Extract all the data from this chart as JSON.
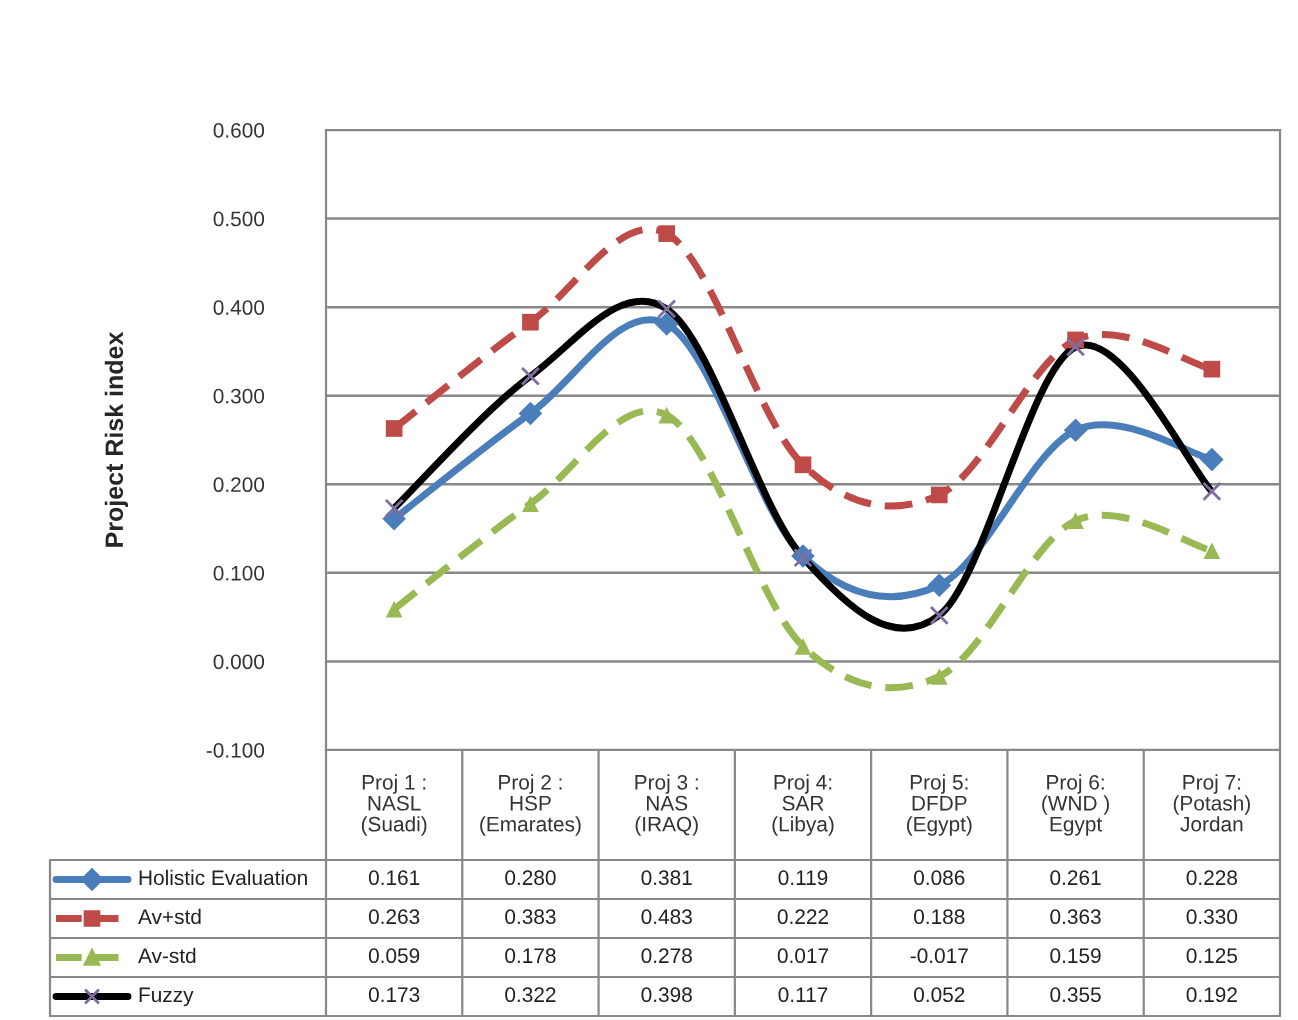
{
  "chart_data": {
    "type": "line",
    "ylabel": "Project Risk index",
    "categories": [
      "Proj 1 :\nNASL\n(Suadi)",
      "Proj 2 :\nHSP\n(Emarates)",
      "Proj 3 :\nNAS\n(IRAQ)",
      "Proj 4:\nSAR\n(Libya)",
      "Proj 5:\nDFDP\n(Egypt)",
      "Proj 6:\n(WND )\nEgypt",
      "Proj 7:\n(Potash)\nJordan"
    ],
    "series": [
      {
        "name": "Holistic Evaluation",
        "color": "#4a7ebb",
        "marker": "diamond",
        "line_style": "solid",
        "values": [
          0.161,
          0.28,
          0.381,
          0.119,
          0.086,
          0.261,
          0.228
        ],
        "value_labels": [
          "0.161",
          "0.280",
          "0.381",
          "0.119",
          "0.086",
          "0.261",
          "0.228"
        ]
      },
      {
        "name": "Av+std",
        "color": "#be4b48",
        "marker": "square",
        "line_style": "dashed",
        "values": [
          0.263,
          0.383,
          0.483,
          0.222,
          0.188,
          0.363,
          0.33
        ],
        "value_labels": [
          "0.263",
          "0.383",
          "0.483",
          "0.222",
          "0.188",
          "0.363",
          "0.330"
        ]
      },
      {
        "name": "Av-std",
        "color": "#98b954",
        "marker": "triangle",
        "line_style": "dashed",
        "values": [
          0.059,
          0.178,
          0.278,
          0.017,
          -0.017,
          0.159,
          0.125
        ],
        "value_labels": [
          "0.059",
          "0.178",
          "0.278",
          "0.017",
          "-0.017",
          "0.159",
          "0.125"
        ]
      },
      {
        "name": "Fuzzy",
        "color": "#000000",
        "marker": "cross",
        "line_style": "solid",
        "values": [
          0.173,
          0.322,
          0.398,
          0.117,
          0.052,
          0.355,
          0.192
        ],
        "value_labels": [
          "0.173",
          "0.322",
          "0.398",
          "0.117",
          "0.052",
          "0.355",
          "0.192"
        ]
      }
    ],
    "ylim": [
      -0.1,
      0.6
    ],
    "yticks": [
      {
        "value": -0.1,
        "label": "-0.100"
      },
      {
        "value": 0.0,
        "label": "0.000"
      },
      {
        "value": 0.1,
        "label": "0.100"
      },
      {
        "value": 0.2,
        "label": "0.200"
      },
      {
        "value": 0.3,
        "label": "0.300"
      },
      {
        "value": 0.4,
        "label": "0.400"
      },
      {
        "value": 0.5,
        "label": "0.500"
      },
      {
        "value": 0.6,
        "label": "0.600"
      }
    ],
    "grid": "y",
    "legend": "bottom"
  }
}
